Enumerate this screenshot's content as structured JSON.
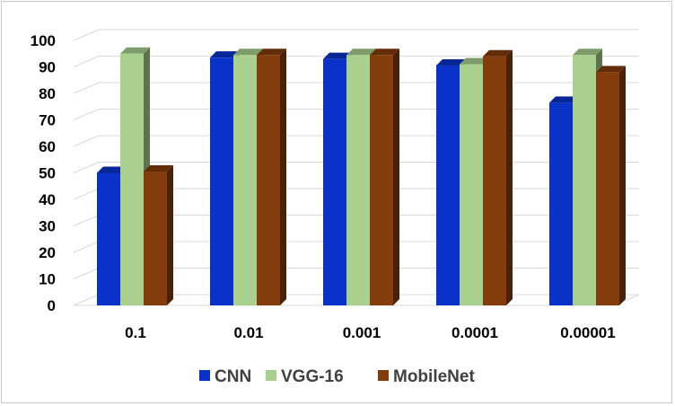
{
  "chart_data": {
    "type": "bar",
    "title": "",
    "xlabel": "",
    "ylabel": "",
    "categories": [
      "0.1",
      "0.01",
      "0.001",
      "0.0001",
      "0.00001"
    ],
    "ylim": [
      0,
      100
    ],
    "yticks": [
      0,
      10,
      20,
      30,
      40,
      50,
      60,
      70,
      80,
      90,
      100
    ],
    "grid": true,
    "legend": "bottom",
    "style": "3d-clustered-column",
    "series": [
      {
        "name": "CNN",
        "values": [
          50,
          93.5,
          93,
          90.5,
          76.5
        ],
        "color": "#0a32c8"
      },
      {
        "name": "VGG-16",
        "values": [
          95,
          94.5,
          94.5,
          91,
          94.5
        ],
        "color": "#a9d08e"
      },
      {
        "name": "MobileNet",
        "values": [
          50.5,
          94.5,
          94.5,
          94,
          88
        ],
        "color": "#843c0c"
      }
    ]
  }
}
